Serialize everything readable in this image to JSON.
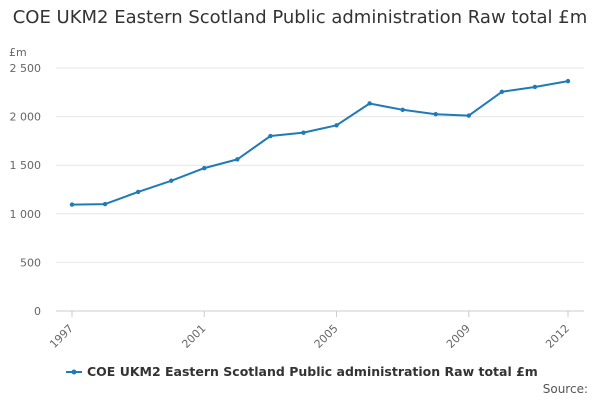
{
  "chart_data": {
    "type": "line",
    "title": "COE UKM2 Eastern Scotland Public administration Raw total £m",
    "unit_label": "£m",
    "x": [
      1997,
      1998,
      1999,
      2000,
      2001,
      2002,
      2003,
      2004,
      2005,
      2006,
      2007,
      2008,
      2009,
      2010,
      2011,
      2012
    ],
    "x_tick_labels": [
      "1997",
      "2001",
      "2005",
      "2009",
      "2012"
    ],
    "x_tick_values": [
      1997,
      2001,
      2005,
      2009,
      2012
    ],
    "ylim": [
      0,
      2500
    ],
    "y_ticks": [
      0,
      500,
      1000,
      1500,
      2000,
      2500
    ],
    "y_tick_labels": [
      "0",
      "500",
      "1 000",
      "1 500",
      "2 000",
      "2 500"
    ],
    "grid": true,
    "series": [
      {
        "name": "COE UKM2 Eastern Scotland Public administration Raw total £m",
        "color": "#1f7bb6",
        "values": [
          1095,
          1100,
          1225,
          1340,
          1470,
          1560,
          1800,
          1835,
          1910,
          2135,
          2070,
          2025,
          2010,
          2255,
          2305,
          2365
        ]
      }
    ],
    "legend_position": "bottom"
  },
  "footer": {
    "source_label": "Source:"
  }
}
